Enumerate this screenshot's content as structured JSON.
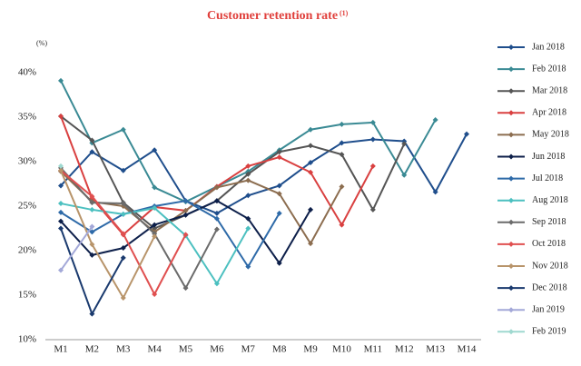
{
  "chart_data": {
    "type": "line",
    "title": "Customer retention rate",
    "title_note": "(1)",
    "y_unit": "(%)",
    "categories": [
      "M1",
      "M2",
      "M3",
      "M4",
      "M5",
      "M6",
      "M7",
      "M8",
      "M9",
      "M10",
      "M11",
      "M12",
      "M13",
      "M14"
    ],
    "ylim": [
      10,
      40
    ],
    "yticks": [
      {
        "value": 10,
        "label": "10%"
      },
      {
        "value": 15,
        "label": "15%"
      },
      {
        "value": 20,
        "label": "20%"
      },
      {
        "value": 25,
        "label": "25%"
      },
      {
        "value": 30,
        "label": "30%"
      },
      {
        "value": 35,
        "label": "35%"
      },
      {
        "value": 40,
        "label": "40%"
      }
    ],
    "grid": false,
    "legend": "right",
    "series": [
      {
        "name": "Jan 2018",
        "color": "#1f4e8c",
        "values": [
          27.3,
          31.1,
          29.0,
          31.3,
          25.6,
          24.2,
          26.2,
          27.3,
          29.9,
          32.1,
          32.5,
          32.3,
          26.6,
          33.1
        ]
      },
      {
        "name": "Feb 2018",
        "color": "#3a8a94",
        "values": [
          39.1,
          32.1,
          33.6,
          27.1,
          25.5,
          27.2,
          28.9,
          31.3,
          33.6,
          34.2,
          34.4,
          28.5,
          34.7,
          null
        ]
      },
      {
        "name": "Mar 2018",
        "color": "#555555",
        "values": [
          35.1,
          32.4,
          25.4,
          22.5,
          24.0,
          25.6,
          28.6,
          31.1,
          31.8,
          30.8,
          24.6,
          32.0,
          null,
          null
        ]
      },
      {
        "name": "Apr 2018",
        "color": "#d94040",
        "values": [
          35.1,
          25.9,
          21.8,
          24.9,
          24.5,
          27.2,
          29.5,
          30.5,
          28.8,
          22.9,
          29.5,
          null,
          null,
          null
        ]
      },
      {
        "name": "May 2018",
        "color": "#8c6d4f",
        "values": [
          28.9,
          25.5,
          25.0,
          22.1,
          24.5,
          27.1,
          27.9,
          26.4,
          20.8,
          27.2,
          null,
          null,
          null,
          null
        ]
      },
      {
        "name": "Jun 2018",
        "color": "#0d1f4a",
        "values": [
          23.3,
          19.5,
          20.3,
          22.9,
          24.0,
          25.6,
          23.6,
          18.6,
          24.6,
          null,
          null,
          null,
          null,
          null
        ]
      },
      {
        "name": "Jul 2018",
        "color": "#2e6aa8",
        "values": [
          24.3,
          22.1,
          24.1,
          25.0,
          25.6,
          23.6,
          18.2,
          24.2,
          null,
          null,
          null,
          null,
          null,
          null
        ]
      },
      {
        "name": "Aug 2018",
        "color": "#4cc0c0",
        "values": [
          25.3,
          24.6,
          24.1,
          24.8,
          21.7,
          16.3,
          22.5,
          null,
          null,
          null,
          null,
          null,
          null,
          null
        ]
      },
      {
        "name": "Sep 2018",
        "color": "#6b6b6b",
        "values": [
          29.3,
          25.4,
          25.3,
          21.9,
          15.8,
          22.4,
          null,
          null,
          null,
          null,
          null,
          null,
          null,
          null
        ]
      },
      {
        "name": "Oct 2018",
        "color": "#e05050",
        "values": [
          29.0,
          26.1,
          21.9,
          15.1,
          21.8,
          null,
          null,
          null,
          null,
          null,
          null,
          null,
          null,
          null
        ]
      },
      {
        "name": "Nov 2018",
        "color": "#b8946a",
        "values": [
          29.0,
          20.7,
          14.7,
          21.6,
          null,
          null,
          null,
          null,
          null,
          null,
          null,
          null,
          null,
          null
        ]
      },
      {
        "name": "Dec 2018",
        "color": "#1a3a6e",
        "values": [
          22.5,
          12.9,
          19.2,
          null,
          null,
          null,
          null,
          null,
          null,
          null,
          null,
          null,
          null,
          null
        ]
      },
      {
        "name": "Jan 2019",
        "color": "#a3a8d8",
        "values": [
          17.8,
          22.7,
          null,
          null,
          null,
          null,
          null,
          null,
          null,
          null,
          null,
          null,
          null,
          null
        ]
      },
      {
        "name": "Feb 2019",
        "color": "#9fd9d0",
        "values": [
          29.5,
          null,
          null,
          null,
          null,
          null,
          null,
          null,
          null,
          null,
          null,
          null,
          null,
          null
        ]
      }
    ]
  }
}
